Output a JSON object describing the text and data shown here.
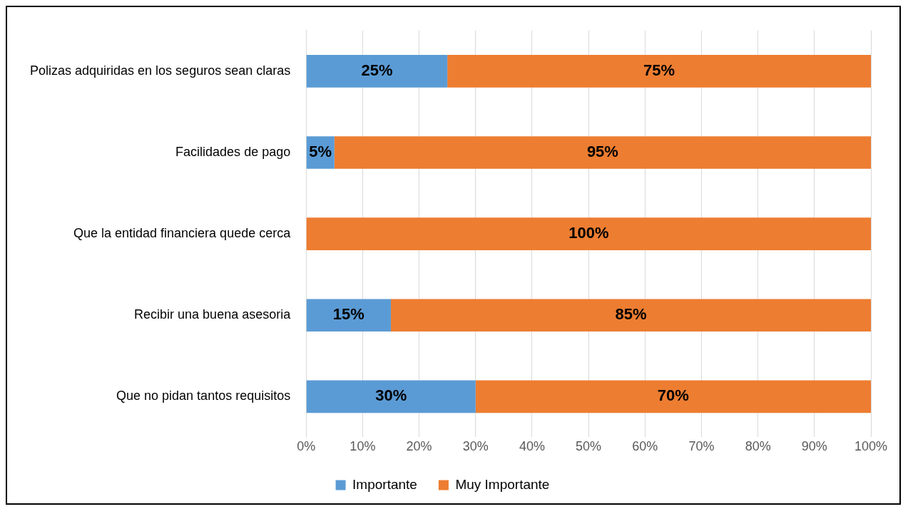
{
  "chart_data": {
    "type": "bar",
    "orientation": "horizontal",
    "stacked": true,
    "categories": [
      "Polizas adquiridas en los seguros sean claras",
      "Facilidades de pago",
      "Que la entidad financiera quede cerca",
      "Recibir una buena asesoria",
      "Que no pidan tantos requisitos"
    ],
    "series": [
      {
        "name": "Importante",
        "color": "#5b9bd5",
        "values": [
          25,
          5,
          0,
          15,
          30
        ],
        "value_labels": [
          "25%",
          "5%",
          null,
          "15%",
          "30%"
        ]
      },
      {
        "name": "Muy Importante",
        "color": "#ed7d31",
        "values": [
          75,
          95,
          100,
          85,
          70
        ],
        "value_labels": [
          "75%",
          "95%",
          "100%",
          "85%",
          "70%"
        ]
      }
    ],
    "xlim": [
      0,
      100
    ],
    "xticks": [
      {
        "value": 0,
        "label": "0%"
      },
      {
        "value": 10,
        "label": "10%"
      },
      {
        "value": 20,
        "label": "20%"
      },
      {
        "value": 30,
        "label": "30%"
      },
      {
        "value": 40,
        "label": "40%"
      },
      {
        "value": 50,
        "label": "50%"
      },
      {
        "value": 60,
        "label": "60%"
      },
      {
        "value": 70,
        "label": "70%"
      },
      {
        "value": 80,
        "label": "80%"
      },
      {
        "value": 90,
        "label": "90%"
      },
      {
        "value": 100,
        "label": "100%"
      }
    ],
    "grid": "x",
    "legend": "bottom"
  }
}
